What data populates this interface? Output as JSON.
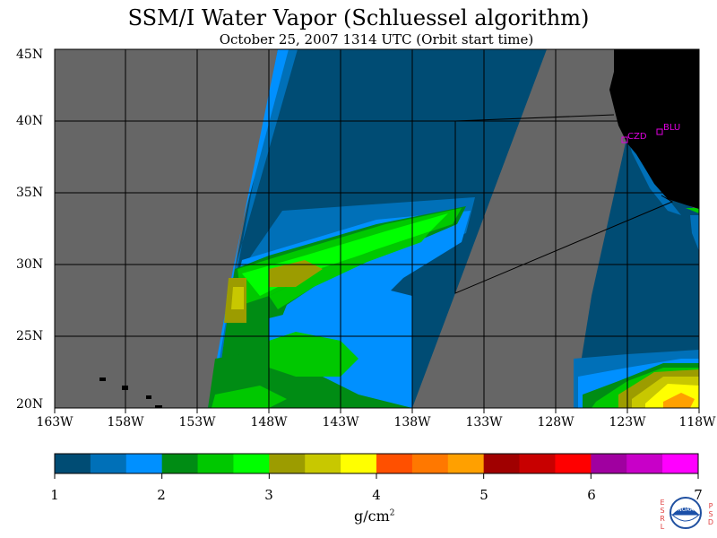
{
  "title": "SSM/I Water Vapor (Schluessel algorithm)",
  "subtitle": "October 25, 2007  1314 UTC  (Orbit start time)",
  "lat_labels": [
    "45N",
    "40N",
    "35N",
    "30N",
    "25N",
    "20N"
  ],
  "lon_labels": [
    "163W",
    "158W",
    "153W",
    "148W",
    "143W",
    "138W",
    "133W",
    "128W",
    "123W",
    "118W"
  ],
  "colorbar": {
    "colors": [
      "#004c74",
      "#0070b8",
      "#0090ff",
      "#008c14",
      "#00c800",
      "#00ff00",
      "#9c9c00",
      "#c8c800",
      "#ffff00",
      "#ff5000",
      "#ff7800",
      "#ffa000",
      "#a00000",
      "#c80000",
      "#ff0000",
      "#a000a0",
      "#c800c8",
      "#ff00ff"
    ],
    "tick_labels": [
      "1",
      "2",
      "3",
      "4",
      "5",
      "6",
      "7"
    ],
    "units": "g/cm",
    "units_exp": "2"
  },
  "stations": [
    {
      "label": "CZD"
    },
    {
      "label": "BLU"
    }
  ],
  "map_colors": {
    "no_data": "#666666",
    "land": "#000000"
  },
  "logo": {
    "left_letters": "ESRL",
    "right_letters": "PSD",
    "center": "NOAA"
  }
}
